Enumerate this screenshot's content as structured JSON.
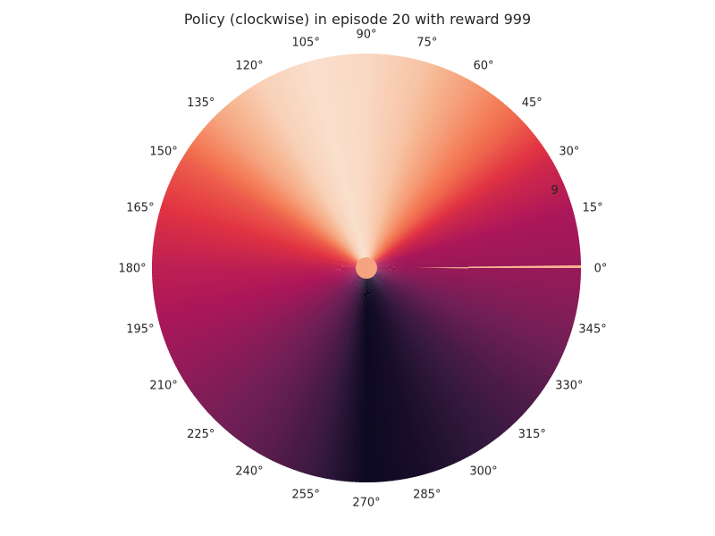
{
  "chart_data": {
    "type": "heatmap",
    "projection": "polar",
    "title": "Policy (clockwise) in episode 20 with reward 999",
    "angle_ticks": [
      {
        "deg": 0,
        "label": "0°"
      },
      {
        "deg": 15,
        "label": "15°"
      },
      {
        "deg": 30,
        "label": "30°"
      },
      {
        "deg": 45,
        "label": "45°"
      },
      {
        "deg": 60,
        "label": "60°"
      },
      {
        "deg": 75,
        "label": "75°"
      },
      {
        "deg": 90,
        "label": "90°"
      },
      {
        "deg": 105,
        "label": "105°"
      },
      {
        "deg": 120,
        "label": "120°"
      },
      {
        "deg": 135,
        "label": "135°"
      },
      {
        "deg": 150,
        "label": "150°"
      },
      {
        "deg": 165,
        "label": "165°"
      },
      {
        "deg": 180,
        "label": "180°"
      },
      {
        "deg": 195,
        "label": "195°"
      },
      {
        "deg": 210,
        "label": "210°"
      },
      {
        "deg": 225,
        "label": "225°"
      },
      {
        "deg": 240,
        "label": "240°"
      },
      {
        "deg": 255,
        "label": "255°"
      },
      {
        "deg": 270,
        "label": "270°"
      },
      {
        "deg": 285,
        "label": "285°"
      },
      {
        "deg": 300,
        "label": "300°"
      },
      {
        "deg": 315,
        "label": "315°"
      },
      {
        "deg": 330,
        "label": "330°"
      },
      {
        "deg": 345,
        "label": "345°"
      }
    ],
    "radial_tick_label": "9",
    "colormap": "rocket",
    "color_stops": [
      "#03051a",
      "#35193e",
      "#701f57",
      "#ad1759",
      "#e13342",
      "#f37651",
      "#f6b48f",
      "#faebdd"
    ],
    "value_range": [
      0,
      1
    ],
    "angle_value_profile": [
      {
        "deg": 0,
        "value": 0.38
      },
      {
        "deg": 15,
        "value": 0.42
      },
      {
        "deg": 30,
        "value": 0.52
      },
      {
        "deg": 45,
        "value": 0.68
      },
      {
        "deg": 60,
        "value": 0.8
      },
      {
        "deg": 75,
        "value": 0.9
      },
      {
        "deg": 90,
        "value": 0.95
      },
      {
        "deg": 105,
        "value": 0.97
      },
      {
        "deg": 120,
        "value": 0.93
      },
      {
        "deg": 135,
        "value": 0.82
      },
      {
        "deg": 150,
        "value": 0.66
      },
      {
        "deg": 165,
        "value": 0.56
      },
      {
        "deg": 180,
        "value": 0.47
      },
      {
        "deg": 195,
        "value": 0.42
      },
      {
        "deg": 210,
        "value": 0.36
      },
      {
        "deg": 225,
        "value": 0.3
      },
      {
        "deg": 240,
        "value": 0.24
      },
      {
        "deg": 255,
        "value": 0.16
      },
      {
        "deg": 270,
        "value": 0.03
      },
      {
        "deg": 285,
        "value": 0.06
      },
      {
        "deg": 300,
        "value": 0.12
      },
      {
        "deg": 315,
        "value": 0.18
      },
      {
        "deg": 330,
        "value": 0.25
      },
      {
        "deg": 345,
        "value": 0.32
      },
      {
        "deg": 360,
        "value": 0.38
      }
    ],
    "center_value": 0.82
  }
}
